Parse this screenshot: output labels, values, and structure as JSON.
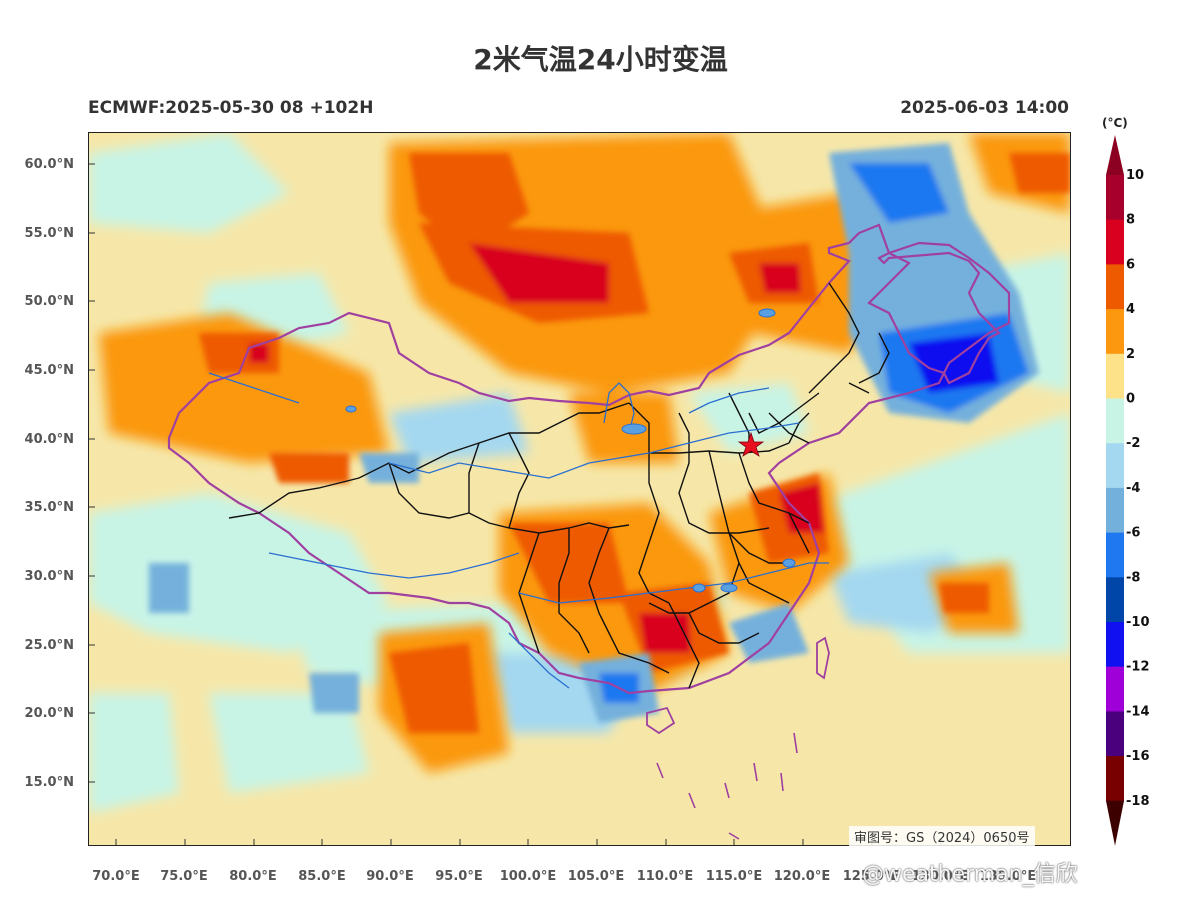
{
  "title": "2米气温24小时变温",
  "model_run": "ECMWF:2025-05-30 08 +102H",
  "valid_time": "2025-06-03 14:00",
  "unit": "(°C)",
  "approval_number": "审图号：GS（2024）0650号",
  "watermark": "@weatherman_信欣",
  "lon_ticks": [
    "70.0°E",
    "75.0°E",
    "80.0°E",
    "85.0°E",
    "90.0°E",
    "95.0°E",
    "100.0°E",
    "105.0°E",
    "110.0°E",
    "115.0°E",
    "120.0°E",
    "125.0°E",
    "130.0°E",
    "135.0°E"
  ],
  "lat_ticks": [
    "60.0°N",
    "55.0°N",
    "50.0°N",
    "45.0°N",
    "40.0°N",
    "35.0°N",
    "30.0°N",
    "25.0°N",
    "20.0°N",
    "15.0°N"
  ],
  "colorbar": {
    "labels": [
      "10",
      "8",
      "6",
      "4",
      "2",
      "0",
      "-2",
      "-4",
      "-6",
      "-8",
      "-10",
      "-12",
      "-14",
      "-16",
      "-18"
    ],
    "colors": [
      "#a8002c",
      "#d8001e",
      "#ee5a00",
      "#fb9810",
      "#fde28a",
      "#c8f4e6",
      "#a4d8f0",
      "#74b0dc",
      "#1f78f0",
      "#0046a8",
      "#1010f0",
      "#a000d8",
      "#4a007c",
      "#780000"
    ],
    "top_color": "#8c0022",
    "bottom_color": "#3c0000"
  },
  "palette": {
    "neutral": "#f6e7a9",
    "light_cool": "#c8f4e6",
    "cool": "#a4d8f0",
    "warm": "#fb9810",
    "hot": "#ee5a00",
    "very_hot": "#d8001e",
    "cold": "#1f78f0",
    "very_cold": "#1010f0",
    "border_purple": "#a040a0",
    "border_black": "#111111",
    "river_blue": "#2a6fd0"
  },
  "marker": "red-star-beijing"
}
